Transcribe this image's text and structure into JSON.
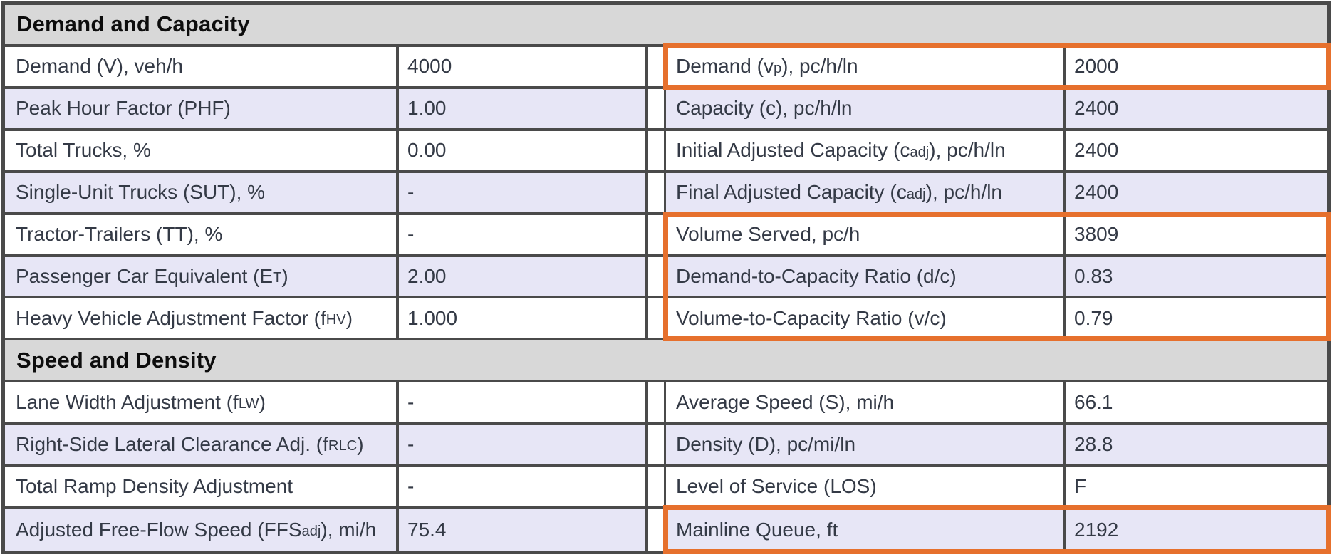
{
  "theme": {
    "highlight_orange": "#E6702D",
    "row_alt_lavender": "#E7E6F6",
    "section_header_bg": "#D8D8D8",
    "grid_border_color": "#4A4A4A",
    "text_color": "#343A46"
  },
  "sections": [
    {
      "title": "Demand and Capacity",
      "rows": [
        {
          "left": {
            "label": [
              {
                "t": "Demand (V), veh/h"
              }
            ],
            "value": "4000"
          },
          "right": {
            "label": [
              {
                "t": "Demand (v"
              },
              {
                "t": "p",
                "sub": true
              },
              {
                "t": "), pc/h/ln"
              }
            ],
            "value": "2000",
            "highlighted": true
          }
        },
        {
          "left": {
            "label": [
              {
                "t": "Peak Hour Factor (PHF)"
              }
            ],
            "value": "1.00"
          },
          "right": {
            "label": [
              {
                "t": "Capacity (c), pc/h/ln"
              }
            ],
            "value": "2400",
            "highlighted": false
          }
        },
        {
          "left": {
            "label": [
              {
                "t": "Total Trucks, %"
              }
            ],
            "value": "0.00"
          },
          "right": {
            "label": [
              {
                "t": "Initial Adjusted Capacity (c"
              },
              {
                "t": "adj",
                "sub": true
              },
              {
                "t": "), pc/h/ln"
              }
            ],
            "value": "2400",
            "highlighted": false
          }
        },
        {
          "left": {
            "label": [
              {
                "t": "Single-Unit Trucks (SUT), %"
              }
            ],
            "value": "-"
          },
          "right": {
            "label": [
              {
                "t": "Final Adjusted Capacity (c"
              },
              {
                "t": "adj",
                "sub": true
              },
              {
                "t": "), pc/h/ln"
              }
            ],
            "value": "2400",
            "highlighted": false
          }
        },
        {
          "left": {
            "label": [
              {
                "t": "Tractor-Trailers (TT), %"
              }
            ],
            "value": "-"
          },
          "right": {
            "label": [
              {
                "t": "Volume Served, pc/h"
              }
            ],
            "value": "3809",
            "highlighted": true
          }
        },
        {
          "left": {
            "label": [
              {
                "t": "Passenger Car Equivalent (E"
              },
              {
                "t": "T",
                "sub": true
              },
              {
                "t": ")"
              }
            ],
            "value": "2.00"
          },
          "right": {
            "label": [
              {
                "t": "Demand-to-Capacity Ratio (d/c)"
              }
            ],
            "value": "0.83",
            "highlighted": true
          }
        },
        {
          "left": {
            "label": [
              {
                "t": "Heavy Vehicle Adjustment Factor (f"
              },
              {
                "t": "HV",
                "sub": true
              },
              {
                "t": ")"
              }
            ],
            "value": "1.000"
          },
          "right": {
            "label": [
              {
                "t": "Volume-to-Capacity Ratio (v/c)"
              }
            ],
            "value": "0.79",
            "highlighted": true
          }
        }
      ]
    },
    {
      "title": "Speed and Density",
      "rows": [
        {
          "left": {
            "label": [
              {
                "t": "Lane Width Adjustment (f"
              },
              {
                "t": "LW",
                "sub": true
              },
              {
                "t": ")"
              }
            ],
            "value": "-"
          },
          "right": {
            "label": [
              {
                "t": "Average Speed (S), mi/h"
              }
            ],
            "value": "66.1",
            "highlighted": false
          }
        },
        {
          "left": {
            "label": [
              {
                "t": "Right-Side Lateral Clearance Adj. (f"
              },
              {
                "t": "RLC",
                "sub": true
              },
              {
                "t": ")"
              }
            ],
            "value": "-"
          },
          "right": {
            "label": [
              {
                "t": "Density (D), pc/mi/ln"
              }
            ],
            "value": "28.8",
            "highlighted": false
          }
        },
        {
          "left": {
            "label": [
              {
                "t": "Total Ramp Density Adjustment"
              }
            ],
            "value": "-"
          },
          "right": {
            "label": [
              {
                "t": "Level of Service (LOS)"
              }
            ],
            "value": "F",
            "highlighted": false
          }
        },
        {
          "left": {
            "label": [
              {
                "t": "Adjusted Free-Flow Speed (FFS"
              },
              {
                "t": "adj",
                "sub": true
              },
              {
                "t": "), mi/h"
              }
            ],
            "value": "75.4"
          },
          "right": {
            "label": [
              {
                "t": "Mainline Queue, ft"
              }
            ],
            "value": "2192",
            "highlighted": true
          }
        }
      ]
    }
  ]
}
